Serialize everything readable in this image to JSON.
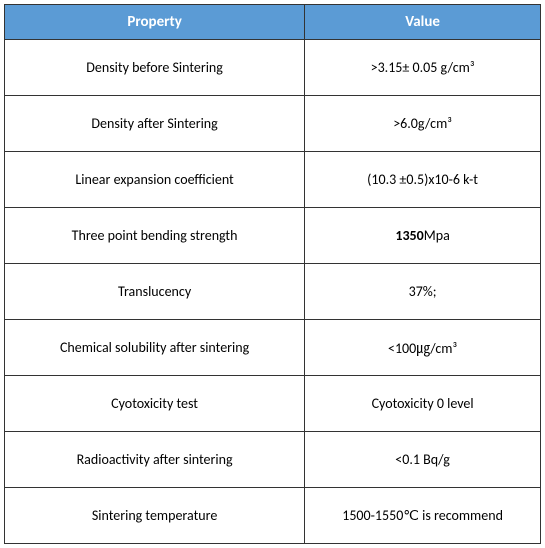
{
  "table": {
    "header_bg": "#5b9bd5",
    "header_fg": "#ffffff",
    "border_color": "#333333",
    "columns": [
      "Property",
      "Value"
    ],
    "rows": [
      {
        "property": "Density before Sintering",
        "value": ">3.15± 0.05 g/cm³"
      },
      {
        "property": "Density after Sintering",
        "value": ">6.0g/cm³"
      },
      {
        "property": "Linear expansion coefficient",
        "value": "(10.3 ±0.5)x10-6 k-t"
      },
      {
        "property": "Three point bending strength",
        "value_bold": "1350",
        "value_rest": "Mpa"
      },
      {
        "property": "Translucency",
        "value": "37%;"
      },
      {
        "property": "Chemical solubility after sintering",
        "value": "<100㎍/cm³"
      },
      {
        "property": "Cyotoxicity test",
        "value": "Cyotoxicity 0 level"
      },
      {
        "property": "Radioactivity after sintering",
        "value": "<0.1 Bq/g"
      },
      {
        "property": "Sintering temperature",
        "value": "1500-1550℃ is recommend"
      }
    ]
  }
}
